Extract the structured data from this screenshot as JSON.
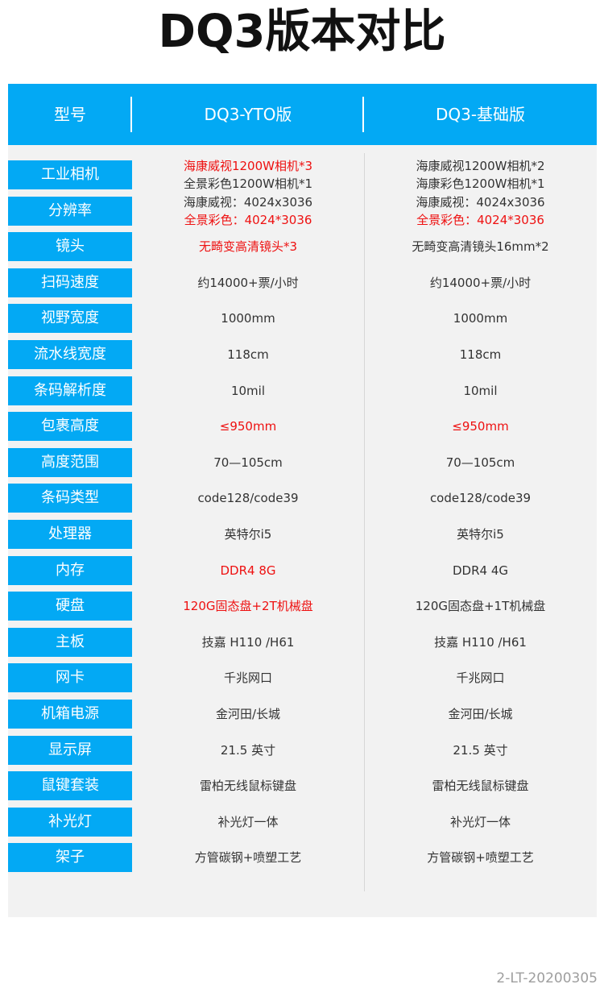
{
  "title": "DQ3版本对比",
  "header": {
    "label": "型号",
    "yto": "DQ3-YTO版",
    "base": "DQ3-基础版"
  },
  "colors": {
    "accent": "#03a9f4",
    "highlight": "#ee1111"
  },
  "rows": [
    {
      "label": "工业相机",
      "yto": [
        "海康威视1200W相机*3",
        "全景彩色1200W相机*1"
      ],
      "yto_red": [
        true,
        false
      ],
      "base": [
        "海康威视1200W相机*2",
        "海康彩色1200W相机*1"
      ],
      "base_red": [
        false,
        false
      ]
    },
    {
      "label": "分辨率",
      "yto": [
        "海康威视：4024x3036",
        "全景彩色：4024*3036"
      ],
      "yto_red": [
        false,
        true
      ],
      "base": [
        "海康威视：4024x3036",
        "全景彩色：4024*3036"
      ],
      "base_red": [
        false,
        true
      ]
    },
    {
      "label": "镜头",
      "yto": [
        "无畸变高清镜头*3"
      ],
      "yto_red": [
        true
      ],
      "base": [
        "无畸变高清镜头16mm*2"
      ],
      "base_red": [
        false
      ]
    },
    {
      "label": "扫码速度",
      "yto": [
        "约14000+票/小时"
      ],
      "yto_red": [
        false
      ],
      "base": [
        "约14000+票/小时"
      ],
      "base_red": [
        false
      ]
    },
    {
      "label": "视野宽度",
      "yto": [
        "1000mm"
      ],
      "yto_red": [
        false
      ],
      "base": [
        "1000mm"
      ],
      "base_red": [
        false
      ]
    },
    {
      "label": "流水线宽度",
      "yto": [
        "118cm"
      ],
      "yto_red": [
        false
      ],
      "base": [
        "118cm"
      ],
      "base_red": [
        false
      ]
    },
    {
      "label": "条码解析度",
      "yto": [
        "10mil"
      ],
      "yto_red": [
        false
      ],
      "base": [
        "10mil"
      ],
      "base_red": [
        false
      ]
    },
    {
      "label": "包裹高度",
      "yto": [
        "≤950mm"
      ],
      "yto_red": [
        true
      ],
      "base": [
        "≤950mm"
      ],
      "base_red": [
        true
      ]
    },
    {
      "label": "高度范围",
      "yto": [
        "70—105cm"
      ],
      "yto_red": [
        false
      ],
      "base": [
        "70—105cm"
      ],
      "base_red": [
        false
      ]
    },
    {
      "label": "条码类型",
      "yto": [
        "code128/code39"
      ],
      "yto_red": [
        false
      ],
      "base": [
        "code128/code39"
      ],
      "base_red": [
        false
      ]
    },
    {
      "label": "处理器",
      "yto": [
        "英特尔i5"
      ],
      "yto_red": [
        false
      ],
      "base": [
        "英特尔i5"
      ],
      "base_red": [
        false
      ]
    },
    {
      "label": "内存",
      "yto": [
        "DDR4 8G"
      ],
      "yto_red": [
        true
      ],
      "base": [
        "DDR4 4G"
      ],
      "base_red": [
        false
      ]
    },
    {
      "label": "硬盘",
      "yto": [
        "120G固态盘+2T机械盘"
      ],
      "yto_red": [
        true
      ],
      "base": [
        "120G固态盘+1T机械盘"
      ],
      "base_red": [
        false
      ]
    },
    {
      "label": "主板",
      "yto": [
        "技嘉 H110 /H61"
      ],
      "yto_red": [
        false
      ],
      "base": [
        "技嘉 H110 /H61"
      ],
      "base_red": [
        false
      ]
    },
    {
      "label": "网卡",
      "yto": [
        "千兆网口"
      ],
      "yto_red": [
        false
      ],
      "base": [
        "千兆网口"
      ],
      "base_red": [
        false
      ]
    },
    {
      "label": "机箱电源",
      "yto": [
        "金河田/长城"
      ],
      "yto_red": [
        false
      ],
      "base": [
        "金河田/长城"
      ],
      "base_red": [
        false
      ]
    },
    {
      "label": "显示屏",
      "yto": [
        "21.5 英寸"
      ],
      "yto_red": [
        false
      ],
      "base": [
        "21.5 英寸"
      ],
      "base_red": [
        false
      ]
    },
    {
      "label": "鼠键套装",
      "yto": [
        "雷柏无线鼠标键盘"
      ],
      "yto_red": [
        false
      ],
      "base": [
        "雷柏无线鼠标键盘"
      ],
      "base_red": [
        false
      ]
    },
    {
      "label": "补光灯",
      "yto": [
        "补光灯一体"
      ],
      "yto_red": [
        false
      ],
      "base": [
        "补光灯一体"
      ],
      "base_red": [
        false
      ]
    },
    {
      "label": "架子",
      "yto": [
        "方管碳钢+喷塑工艺"
      ],
      "yto_red": [
        false
      ],
      "base": [
        "方管碳钢+喷塑工艺"
      ],
      "base_red": [
        false
      ]
    }
  ],
  "footer_code": "2-LT-20200305"
}
